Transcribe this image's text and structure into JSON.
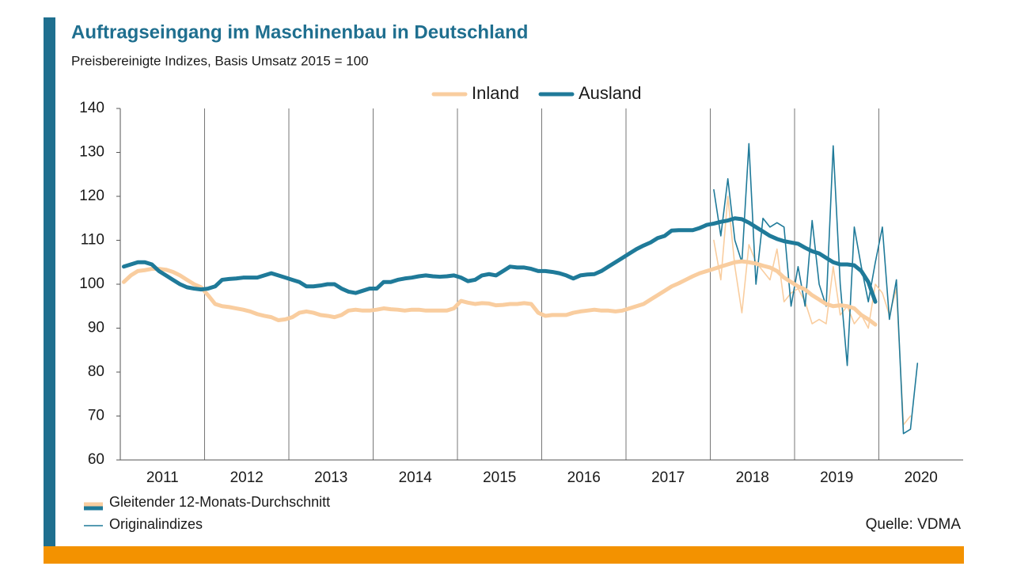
{
  "chart_data": {
    "type": "line",
    "title": "Auftragseingang im Maschinenbau in Deutschland",
    "subtitle": "Preisbereinigte Indizes, Basis Umsatz 2015 = 100",
    "source": "Quelle: VDMA",
    "line_styles": [
      "Gleitender 12-Monats-Durchschnitt",
      "Originalindizes"
    ],
    "x": [
      "2011-01",
      "2011-02",
      "2011-03",
      "2011-04",
      "2011-05",
      "2011-06",
      "2011-07",
      "2011-08",
      "2011-09",
      "2011-10",
      "2011-11",
      "2011-12",
      "2012-01",
      "2012-02",
      "2012-03",
      "2012-04",
      "2012-05",
      "2012-06",
      "2012-07",
      "2012-08",
      "2012-09",
      "2012-10",
      "2012-11",
      "2012-12",
      "2013-01",
      "2013-02",
      "2013-03",
      "2013-04",
      "2013-05",
      "2013-06",
      "2013-07",
      "2013-08",
      "2013-09",
      "2013-10",
      "2013-11",
      "2013-12",
      "2014-01",
      "2014-02",
      "2014-03",
      "2014-04",
      "2014-05",
      "2014-06",
      "2014-07",
      "2014-08",
      "2014-09",
      "2014-10",
      "2014-11",
      "2014-12",
      "2015-01",
      "2015-02",
      "2015-03",
      "2015-04",
      "2015-05",
      "2015-06",
      "2015-07",
      "2015-08",
      "2015-09",
      "2015-10",
      "2015-11",
      "2015-12",
      "2016-01",
      "2016-02",
      "2016-03",
      "2016-04",
      "2016-05",
      "2016-06",
      "2016-07",
      "2016-08",
      "2016-09",
      "2016-10",
      "2016-11",
      "2016-12",
      "2017-01",
      "2017-02",
      "2017-03",
      "2017-04",
      "2017-05",
      "2017-06",
      "2017-07",
      "2017-08",
      "2017-09",
      "2017-10",
      "2017-11",
      "2017-12",
      "2018-01",
      "2018-02",
      "2018-03",
      "2018-04",
      "2018-05",
      "2018-06",
      "2018-07",
      "2018-08",
      "2018-09",
      "2018-10",
      "2018-11",
      "2018-12",
      "2019-01",
      "2019-02",
      "2019-03",
      "2019-04",
      "2019-05",
      "2019-06",
      "2019-07",
      "2019-08",
      "2019-09",
      "2019-10",
      "2019-11",
      "2019-12",
      "2020-01",
      "2020-02",
      "2020-03",
      "2020-04",
      "2020-05",
      "2020-06"
    ],
    "xlim": [
      "2011-01",
      "2020-12"
    ],
    "xticks": [
      {
        "value": "2011-01",
        "label": "2011"
      },
      {
        "value": "2012-01",
        "label": "2012"
      },
      {
        "value": "2013-01",
        "label": "2013"
      },
      {
        "value": "2014-01",
        "label": "2014"
      },
      {
        "value": "2015-01",
        "label": "2015"
      },
      {
        "value": "2016-01",
        "label": "2016"
      },
      {
        "value": "2017-01",
        "label": "2017"
      },
      {
        "value": "2018-01",
        "label": "2018"
      },
      {
        "value": "2019-01",
        "label": "2019"
      },
      {
        "value": "2020-01",
        "label": "2020"
      }
    ],
    "ylim": [
      60,
      140
    ],
    "yticks": [
      60,
      70,
      80,
      90,
      100,
      110,
      120,
      130,
      140
    ],
    "series": [
      {
        "name": "Inland",
        "color": "#f9cd9f",
        "values": [
          100.5,
          102,
          103,
          103.2,
          103.5,
          103.5,
          103.3,
          102.8,
          102,
          101,
          100,
          99.3,
          97.5,
          95.5,
          95,
          94.8,
          94.5,
          94.2,
          93.8,
          93.2,
          92.8,
          92.5,
          91.8,
          92,
          92.5,
          93.5,
          93.8,
          93.5,
          93,
          92.8,
          92.5,
          93,
          94,
          94.2,
          94,
          94,
          94.2,
          94.5,
          94.3,
          94.2,
          94,
          94.2,
          94.2,
          94,
          94,
          94,
          94,
          94.5,
          96.2,
          95.8,
          95.5,
          95.7,
          95.6,
          95.2,
          95.3,
          95.5,
          95.5,
          95.7,
          95.5,
          93.5,
          92.8,
          93,
          93,
          93,
          93.5,
          93.8,
          94,
          94.2,
          94,
          94,
          93.8,
          94,
          94.5,
          95,
          95.5,
          96.5,
          97.5,
          98.5,
          99.5,
          100.2,
          101,
          101.8,
          102.5,
          103,
          103.5,
          104,
          104.5,
          105,
          105.2,
          105,
          104.7,
          104.2,
          103.8,
          103,
          101.5,
          100.5,
          99.5,
          98.8,
          97.5,
          96.5,
          95.5,
          95,
          95.2,
          95,
          94.5,
          93,
          92,
          90.8,
          null,
          null,
          null,
          null,
          null,
          null
        ],
        "original": [
          null,
          null,
          null,
          null,
          null,
          null,
          null,
          null,
          null,
          null,
          null,
          null,
          null,
          null,
          null,
          null,
          null,
          null,
          null,
          null,
          null,
          null,
          null,
          null,
          null,
          null,
          null,
          null,
          null,
          null,
          null,
          null,
          null,
          null,
          null,
          null,
          null,
          null,
          null,
          null,
          null,
          null,
          null,
          null,
          null,
          null,
          null,
          null,
          null,
          null,
          null,
          null,
          null,
          null,
          null,
          null,
          null,
          null,
          null,
          null,
          null,
          null,
          null,
          null,
          null,
          null,
          null,
          null,
          null,
          null,
          null,
          null,
          null,
          null,
          null,
          null,
          null,
          null,
          null,
          null,
          null,
          null,
          null,
          null,
          110,
          101,
          120,
          104,
          93.5,
          109,
          105,
          103,
          101,
          108,
          96,
          98,
          99,
          96,
          91,
          92,
          91,
          104,
          93,
          95,
          91,
          93,
          90,
          100,
          98,
          93,
          99,
          68,
          70,
          null
        ]
      },
      {
        "name": "Ausland",
        "color": "#1f7a99",
        "values": [
          104,
          104.5,
          105,
          105,
          104.5,
          103,
          102,
          101,
          100,
          99.3,
          99,
          98.8,
          99,
          99.5,
          101,
          101.2,
          101.3,
          101.5,
          101.5,
          101.5,
          102,
          102.5,
          102,
          101.5,
          101,
          100.5,
          99.5,
          99.5,
          99.7,
          100,
          100,
          99,
          98.3,
          98,
          98.5,
          99,
          99,
          100.5,
          100.5,
          101,
          101.3,
          101.5,
          101.8,
          102,
          101.8,
          101.7,
          101.8,
          102,
          101.5,
          100.7,
          101,
          102,
          102.3,
          102,
          103,
          104,
          103.8,
          103.8,
          103.5,
          103,
          103,
          102.8,
          102.5,
          102,
          101.3,
          102,
          102.2,
          102.3,
          103,
          104,
          105,
          106,
          107,
          108,
          108.8,
          109.5,
          110.5,
          111,
          112.2,
          112.3,
          112.3,
          112.3,
          112.8,
          113.5,
          113.8,
          114.2,
          114.5,
          115,
          114.8,
          114,
          113,
          112,
          111,
          110.3,
          109.8,
          109.5,
          109.2,
          108.3,
          107.5,
          107,
          106,
          105,
          104.5,
          104.5,
          104.3,
          103,
          100.5,
          96,
          null,
          null,
          null,
          null,
          null,
          null
        ],
        "original": [
          null,
          null,
          null,
          null,
          null,
          null,
          null,
          null,
          null,
          null,
          null,
          null,
          null,
          null,
          null,
          null,
          null,
          null,
          null,
          null,
          null,
          null,
          null,
          null,
          null,
          null,
          null,
          null,
          null,
          null,
          null,
          null,
          null,
          null,
          null,
          null,
          null,
          null,
          null,
          null,
          null,
          null,
          null,
          null,
          null,
          null,
          null,
          null,
          null,
          null,
          null,
          null,
          null,
          null,
          null,
          null,
          null,
          null,
          null,
          null,
          null,
          null,
          null,
          null,
          null,
          null,
          null,
          null,
          null,
          null,
          null,
          null,
          null,
          null,
          null,
          null,
          null,
          null,
          null,
          null,
          null,
          null,
          null,
          null,
          121.5,
          111,
          124,
          110,
          105,
          132,
          100,
          115,
          113,
          114,
          113,
          95,
          104,
          95,
          114.5,
          100,
          95,
          131.5,
          100,
          81.5,
          113,
          104,
          96,
          105,
          113,
          92,
          101,
          66,
          67,
          82
        ]
      }
    ],
    "grid": true
  }
}
